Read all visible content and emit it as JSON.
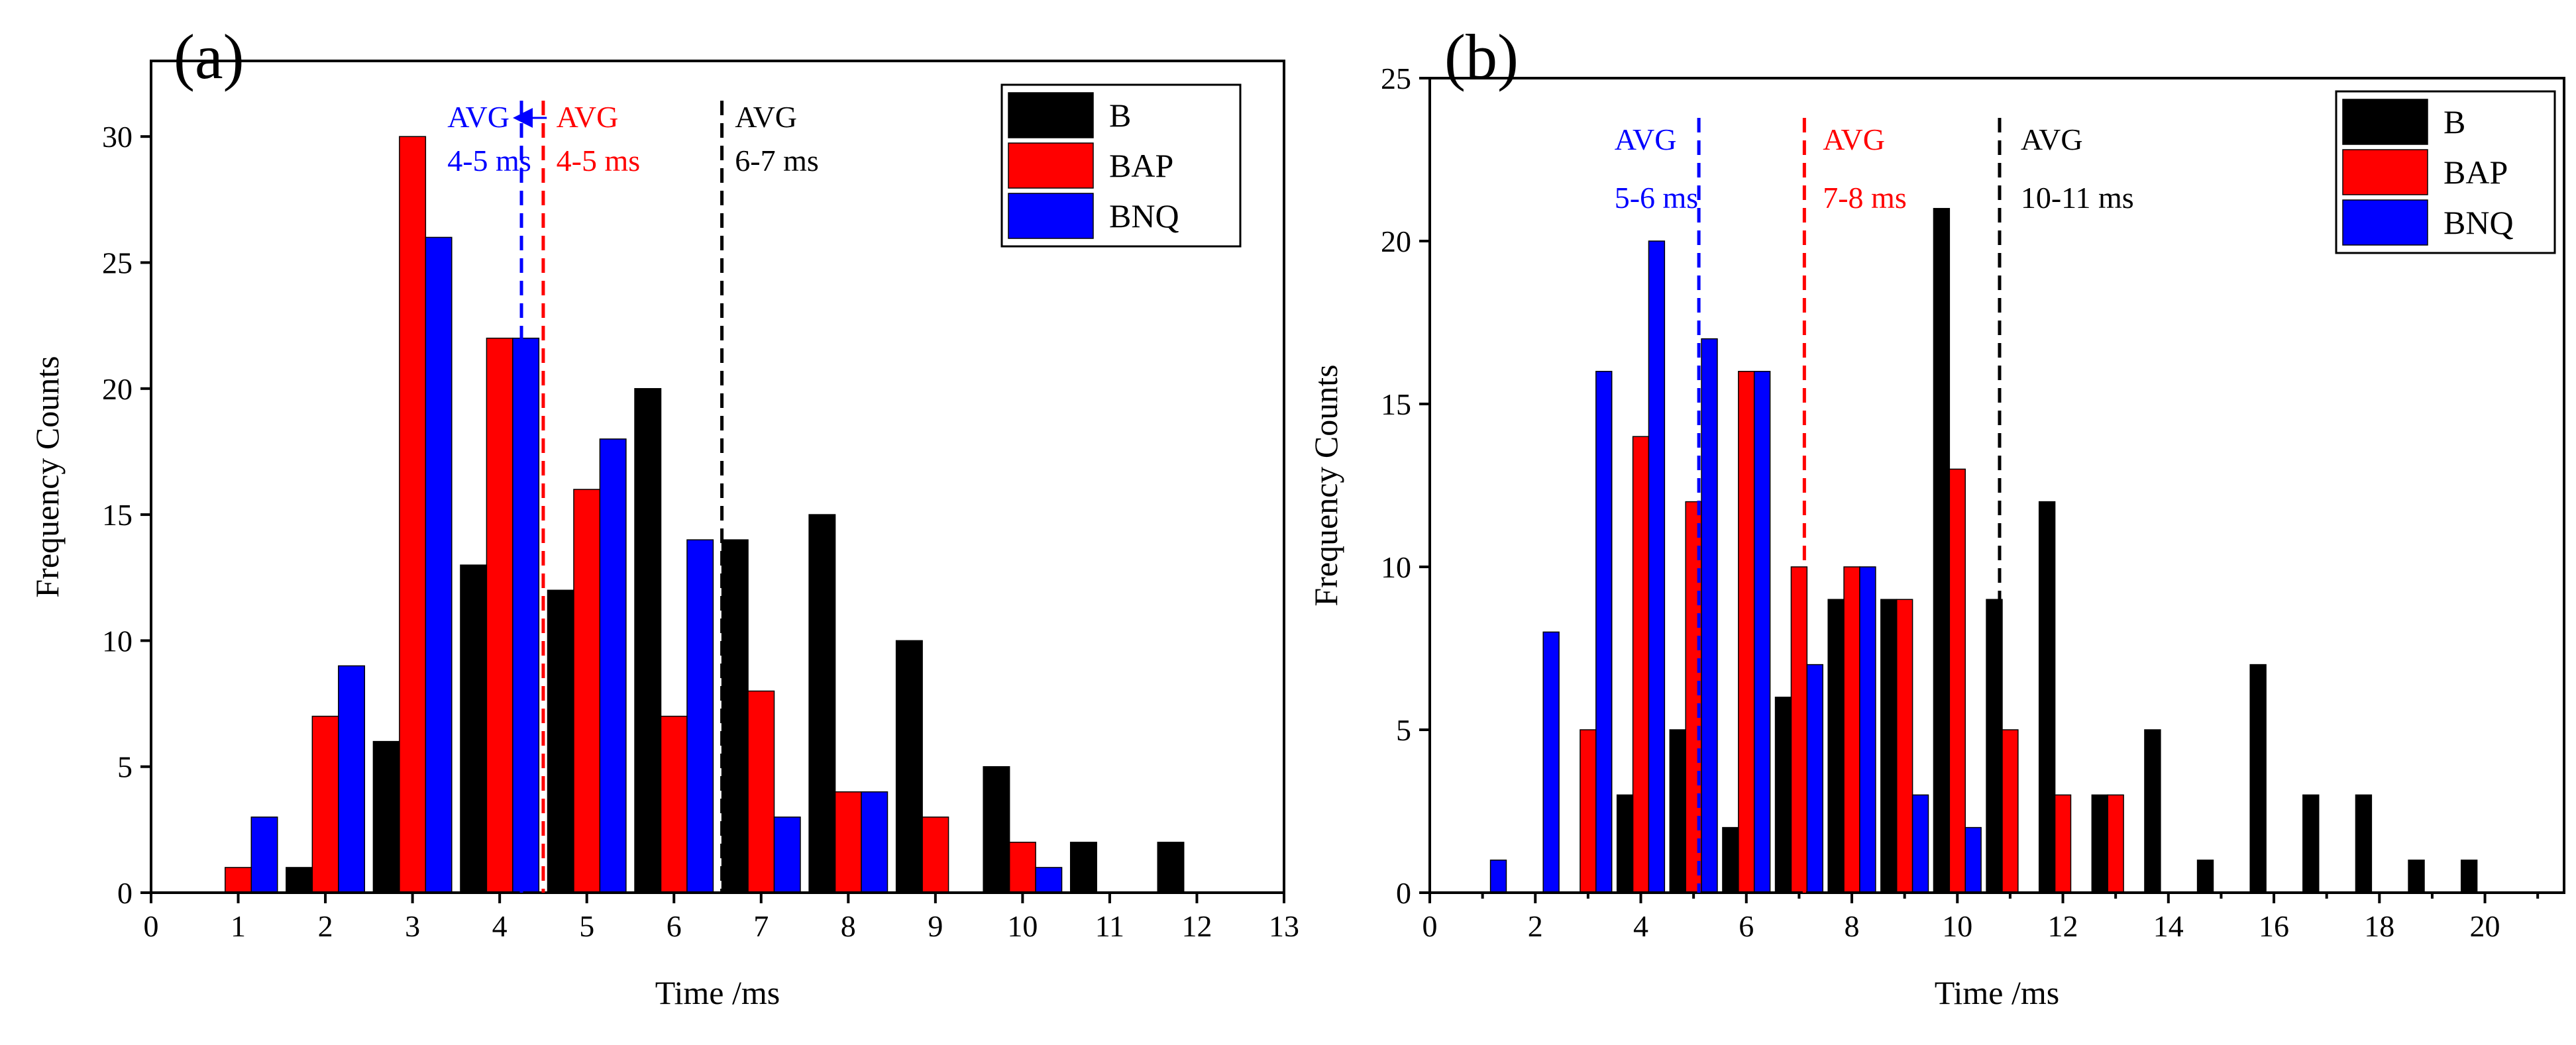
{
  "chart_data": [
    {
      "type": "bar",
      "panel_label": "(a)",
      "xlabel": "Time /ms",
      "ylabel": "Frequency Counts",
      "xlim": [
        0,
        13
      ],
      "ylim": [
        0,
        33
      ],
      "x_ticks": [
        0,
        1,
        2,
        3,
        4,
        5,
        6,
        7,
        8,
        9,
        10,
        11,
        12,
        13
      ],
      "y_ticks": [
        0,
        5,
        10,
        15,
        20,
        25,
        30
      ],
      "bin_width": 1,
      "legend_position": "top-right",
      "series": [
        {
          "name": "B",
          "color": "#000000",
          "offset": -0.3,
          "x": [
            1,
            2,
            3,
            4,
            5,
            6,
            7,
            8,
            9,
            10,
            11,
            12
          ],
          "values": [
            0,
            1,
            6,
            13,
            12,
            20,
            14,
            15,
            10,
            5,
            2,
            2
          ]
        },
        {
          "name": "BAP",
          "color": "#ff0000",
          "offset": 0,
          "x": [
            1,
            2,
            3,
            4,
            5,
            6,
            7,
            8,
            9,
            10,
            11,
            12
          ],
          "values": [
            1,
            7,
            30,
            22,
            16,
            7,
            8,
            4,
            3,
            2,
            0,
            0
          ]
        },
        {
          "name": "BNQ",
          "color": "#0000ff",
          "offset": 0.3,
          "x": [
            1,
            2,
            3,
            4,
            5,
            6,
            7,
            8,
            9,
            10,
            11,
            12
          ],
          "values": [
            3,
            9,
            26,
            22,
            18,
            14,
            3,
            4,
            0,
            1,
            0,
            0
          ]
        }
      ],
      "avg_lines": [
        {
          "series": "BNQ",
          "x": 4.25,
          "color": "#0000ff",
          "label_line1": "AVG",
          "label_line2": "4-5 ms",
          "text_x": 3.4,
          "arrow": true
        },
        {
          "series": "BAP",
          "x": 4.5,
          "color": "#ff0000",
          "label_line1": "AVG",
          "label_line2": "4-5 ms",
          "text_x": 4.65,
          "arrow": false
        },
        {
          "series": "B",
          "x": 6.55,
          "color": "#000000",
          "label_line1": "AVG",
          "label_line2": "6-7 ms",
          "text_x": 6.7,
          "arrow": false
        }
      ]
    },
    {
      "type": "bar",
      "panel_label": "(b)",
      "xlabel": "Time /ms",
      "ylabel": "Frequency Counts",
      "xlim": [
        0,
        21.5
      ],
      "ylim": [
        0,
        25
      ],
      "x_ticks": [
        0,
        2,
        4,
        6,
        8,
        10,
        12,
        14,
        16,
        18,
        20
      ],
      "y_ticks": [
        0,
        5,
        10,
        15,
        20,
        25
      ],
      "bin_width": 1,
      "legend_position": "top-right",
      "series": [
        {
          "name": "B",
          "color": "#000000",
          "offset": -0.3,
          "x": [
            1,
            2,
            3,
            4,
            5,
            6,
            7,
            8,
            9,
            10,
            11,
            12,
            13,
            14,
            15,
            16,
            17,
            18,
            19,
            20
          ],
          "values": [
            0,
            0,
            0,
            3,
            5,
            2,
            6,
            9,
            9,
            21,
            9,
            12,
            3,
            5,
            1,
            7,
            3,
            3,
            1,
            1
          ]
        },
        {
          "name": "BAP",
          "color": "#ff0000",
          "offset": 0,
          "x": [
            1,
            2,
            3,
            4,
            5,
            6,
            7,
            8,
            9,
            10,
            11,
            12,
            13,
            14,
            15,
            16,
            17,
            18,
            19,
            20
          ],
          "values": [
            0,
            0,
            5,
            14,
            12,
            16,
            10,
            10,
            9,
            13,
            5,
            3,
            3,
            0,
            0,
            0,
            0,
            0,
            0,
            0
          ]
        },
        {
          "name": "BNQ",
          "color": "#0000ff",
          "offset": 0.3,
          "x": [
            1,
            2,
            3,
            4,
            5,
            6,
            7,
            8,
            9,
            10,
            11,
            12,
            13,
            14,
            15,
            16,
            17,
            18,
            19,
            20
          ],
          "values": [
            1,
            8,
            16,
            20,
            17,
            16,
            7,
            10,
            3,
            2,
            0,
            0,
            0,
            0,
            0,
            0,
            0,
            0,
            0,
            0
          ]
        }
      ],
      "avg_lines": [
        {
          "series": "BNQ",
          "x": 5.1,
          "color": "#0000ff",
          "label_line1": "AVG",
          "label_line2": "5-6 ms",
          "text_x": 3.5,
          "arrow": false
        },
        {
          "series": "BAP",
          "x": 7.1,
          "color": "#ff0000",
          "label_line1": "AVG",
          "label_line2": "7-8 ms",
          "text_x": 7.45,
          "arrow": false
        },
        {
          "series": "B",
          "x": 10.8,
          "color": "#000000",
          "label_line1": "AVG",
          "label_line2": "10-11 ms",
          "text_x": 11.2,
          "arrow": false
        }
      ]
    }
  ]
}
